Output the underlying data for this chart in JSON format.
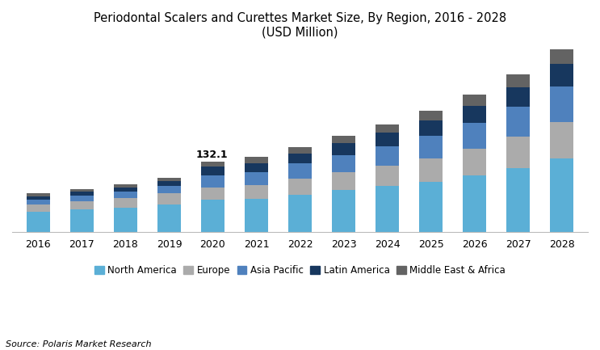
{
  "title_line1": "Periodontal Scalers and Curettes Market Size, By Region, 2016 - 2028",
  "title_line2": "(USD Million)",
  "years": [
    2016,
    2017,
    2018,
    2019,
    2020,
    2021,
    2022,
    2023,
    2024,
    2025,
    2026,
    2027,
    2028
  ],
  "annotation_year": 2020,
  "annotation_text": "132.1",
  "regions": [
    "North America",
    "Europe",
    "Asia Pacific",
    "Latin America",
    "Middle East & Africa"
  ],
  "colors": [
    "#5BAFD6",
    "#ABABAB",
    "#4F81BD",
    "#17375E",
    "#636363"
  ],
  "data": {
    "North America": [
      38,
      42,
      46,
      52,
      60,
      62,
      70,
      78,
      86,
      94,
      106,
      120,
      138
    ],
    "Europe": [
      14,
      16,
      18,
      20,
      24,
      26,
      30,
      34,
      38,
      44,
      50,
      58,
      68
    ],
    "Asia Pacific": [
      9,
      10,
      12,
      14,
      22,
      24,
      28,
      32,
      36,
      42,
      48,
      56,
      66
    ],
    "Latin America": [
      6,
      7,
      8,
      9,
      16,
      17,
      19,
      22,
      25,
      28,
      32,
      36,
      42
    ],
    "Middle East & Africa": [
      5,
      5.5,
      6,
      7,
      10.1,
      11,
      12,
      14,
      16,
      18,
      21,
      24,
      27
    ]
  },
  "source_text": "Source: Polaris Market Research",
  "background_color": "#FFFFFF",
  "ylim": [
    0,
    345
  ],
  "bar_width": 0.55,
  "title_fontsize": 10.5,
  "legend_fontsize": 8.5,
  "source_fontsize": 8
}
